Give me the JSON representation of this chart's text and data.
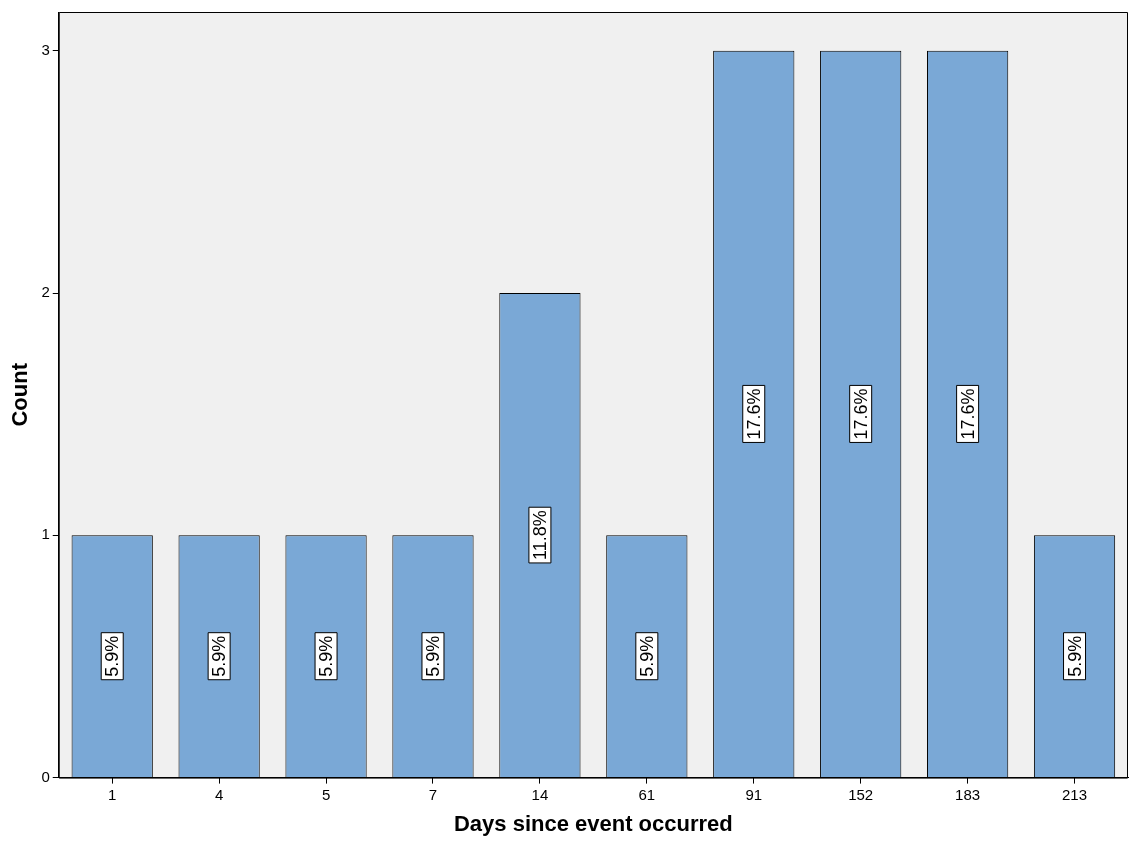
{
  "chart_data": {
    "type": "bar",
    "xlabel": "Days since event occurred",
    "ylabel": "Count",
    "categories": [
      "1",
      "4",
      "5",
      "7",
      "14",
      "61",
      "91",
      "152",
      "183",
      "213"
    ],
    "values": [
      1,
      1,
      1,
      1,
      2,
      1,
      3,
      3,
      3,
      1
    ],
    "annotations": [
      "5.9%",
      "5.9%",
      "5.9%",
      "5.9%",
      "11.8%",
      "5.9%",
      "17.6%",
      "17.6%",
      "17.6%",
      "5.9%"
    ],
    "color": "#7aa8d6",
    "ylim": [
      0,
      3.16
    ],
    "yticks": [
      0,
      1,
      2,
      3
    ],
    "grid": false,
    "legend": false
  }
}
